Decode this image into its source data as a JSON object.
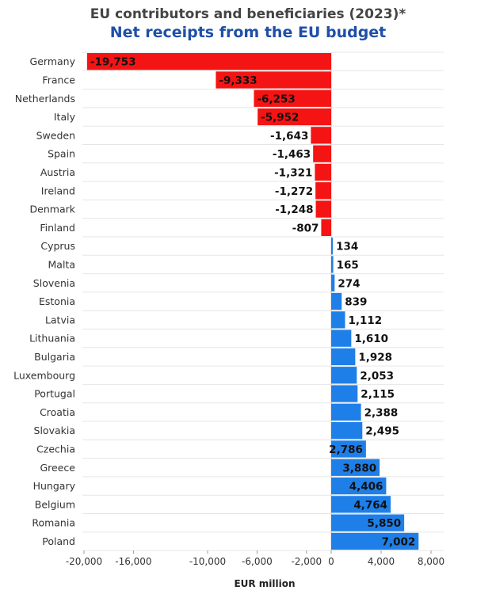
{
  "title": "EU contributors and beneficiaries (2023)*",
  "subtitle": "Net receipts from the EU budget",
  "colors": {
    "negative": "#f41414",
    "positive": "#1f7fe8",
    "title": "#444444",
    "subtitle": "#1f4fa8"
  },
  "chart_data": {
    "type": "bar",
    "orientation": "horizontal",
    "title": "EU contributors and beneficiaries (2023)*",
    "subtitle": "Net receipts from the EU budget",
    "xlabel": "EUR million",
    "ylabel": "",
    "xlim": [
      -20000,
      8000
    ],
    "grid": true,
    "categories": [
      "Germany",
      "France",
      "Netherlands",
      "Italy",
      "Sweden",
      "Spain",
      "Austria",
      "Ireland",
      "Denmark",
      "Finland",
      "Cyprus",
      "Malta",
      "Slovenia",
      "Estonia",
      "Latvia",
      "Lithuania",
      "Bulgaria",
      "Luxembourg",
      "Portugal",
      "Croatia",
      "Slovakia",
      "Czechia",
      "Greece",
      "Hungary",
      "Belgium",
      "Romania",
      "Poland"
    ],
    "values": [
      -19753,
      -9333,
      -6253,
      -5952,
      -1643,
      -1463,
      -1321,
      -1272,
      -1248,
      -807,
      134,
      165,
      274,
      839,
      1112,
      1610,
      1928,
      2053,
      2115,
      2388,
      2495,
      2786,
      3880,
      4406,
      4764,
      5850,
      7002
    ],
    "value_labels": [
      "-19,753",
      "-9,333",
      "-6,253",
      "-5,952",
      "-1,643",
      "-1,463",
      "-1,321",
      "-1,272",
      "-1,248",
      "-807",
      "134",
      "165",
      "274",
      "839",
      "1,112",
      "1,610",
      "1,928",
      "2,053",
      "2,115",
      "2,388",
      "2,495",
      "2,786",
      "3,880",
      "4,406",
      "4,764",
      "5,850",
      "7,002"
    ],
    "x_ticks": [
      -20000,
      -16000,
      -10000,
      -6000,
      -2000,
      0,
      4000,
      8000
    ],
    "x_tick_labels": [
      "-20,000",
      "-16,000",
      "-10,000",
      "-6,000",
      "-2,000",
      "0",
      "4,000",
      "8,000"
    ]
  }
}
